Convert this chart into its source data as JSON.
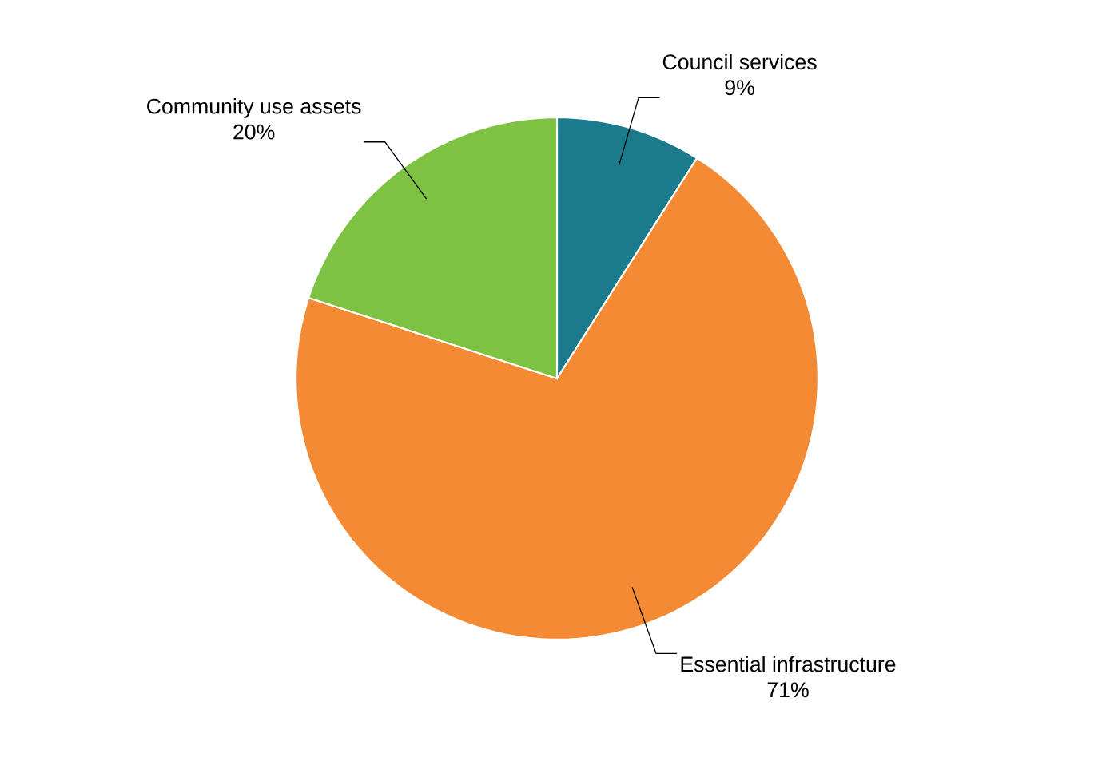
{
  "chart_data": {
    "type": "pie",
    "categories": [
      "Council services",
      "Essential infrastructure",
      "Community use assets"
    ],
    "values": [
      9,
      71,
      20
    ],
    "colors": [
      "#1b7a8c",
      "#f58a35",
      "#7dc242"
    ],
    "value_labels": [
      "9%",
      "71%",
      "20%"
    ]
  }
}
